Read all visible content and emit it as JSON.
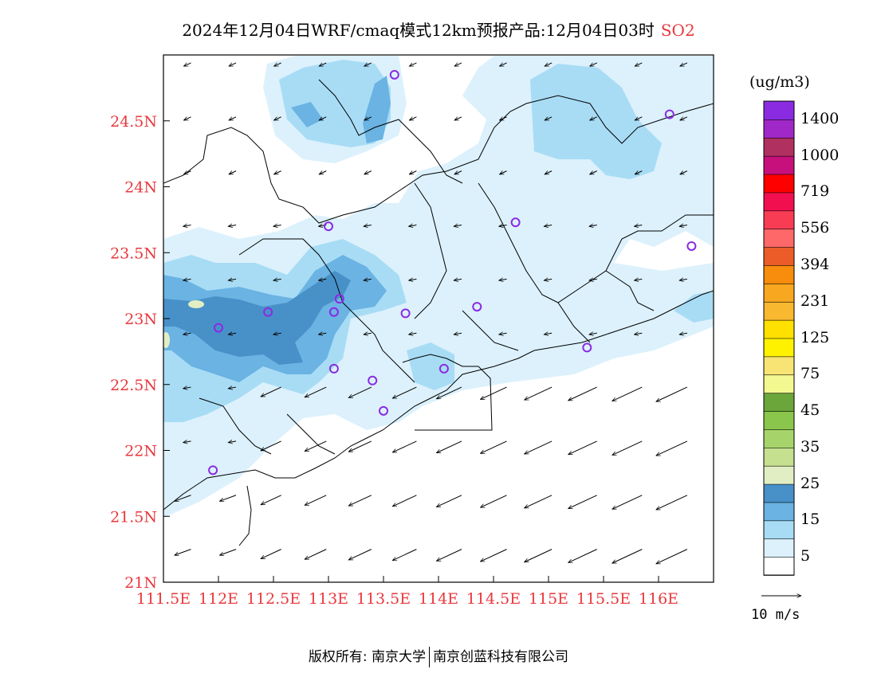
{
  "header": {
    "title": "2024年12月04日WRF/cmaq模式12km预报产品:12月04日03时",
    "species": "SO2"
  },
  "map": {
    "lon_labels": [
      "111.5E",
      "112E",
      "112.5E",
      "113E",
      "113.5E",
      "114E",
      "114.5E",
      "115E",
      "115.5E",
      "116E"
    ],
    "lat_labels": [
      "24.5N",
      "24N",
      "23.5N",
      "23N",
      "22.5N",
      "22N",
      "21.5N",
      "21N"
    ],
    "stations": [
      {
        "lon": 113.6,
        "lat": 24.85
      },
      {
        "lon": 116.1,
        "lat": 24.55
      },
      {
        "lon": 113.0,
        "lat": 23.7
      },
      {
        "lon": 114.7,
        "lat": 23.73
      },
      {
        "lon": 116.3,
        "lat": 23.55
      },
      {
        "lon": 112.45,
        "lat": 23.05
      },
      {
        "lon": 113.1,
        "lat": 23.15
      },
      {
        "lon": 113.05,
        "lat": 23.05
      },
      {
        "lon": 113.7,
        "lat": 23.04
      },
      {
        "lon": 114.35,
        "lat": 23.09
      },
      {
        "lon": 112.0,
        "lat": 22.93
      },
      {
        "lon": 115.35,
        "lat": 22.78
      },
      {
        "lon": 113.05,
        "lat": 22.62
      },
      {
        "lon": 113.4,
        "lat": 22.53
      },
      {
        "lon": 114.05,
        "lat": 22.62
      },
      {
        "lon": 113.5,
        "lat": 22.3
      },
      {
        "lon": 111.95,
        "lat": 21.85
      }
    ]
  },
  "colorbar": {
    "unit": "(ug/m3)",
    "colors": [
      "#ffffff",
      "#dcf1fc",
      "#a8dcf5",
      "#6ab3e3",
      "#4891c8",
      "#e1eec4",
      "#c5e08e",
      "#a7d46a",
      "#8ac64b",
      "#6aa63a",
      "#f4f890",
      "#f8e474",
      "#fff200",
      "#ffe000",
      "#f8b830",
      "#f8a820",
      "#f88c0c",
      "#ec5c28",
      "#ff6868",
      "#f83c54",
      "#f20f50",
      "#ff0000",
      "#c8107c",
      "#b03060",
      "#a028c8",
      "#8a2be2"
    ],
    "labels": [
      "5",
      "15",
      "25",
      "35",
      "45",
      "75",
      "125",
      "231",
      "394",
      "556",
      "719",
      "1000",
      "1400"
    ]
  },
  "wind_legend": {
    "label": "10 m/s"
  },
  "footer": {
    "org1": "版权所有: 南京大学",
    "org2": "南京创蓝科技有限公司"
  }
}
